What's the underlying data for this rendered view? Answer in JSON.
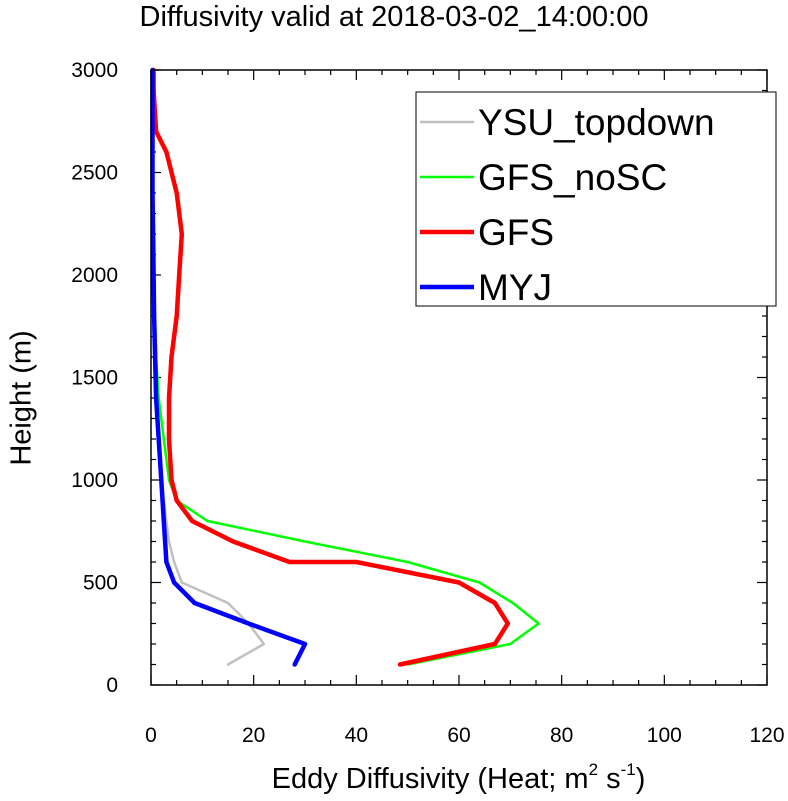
{
  "chart_data": {
    "type": "line",
    "title": "Diffusivity valid at 2018-03-02_14:00:00",
    "xlabel": {
      "main": "Eddy Diffusivity (Heat; m",
      "sup1": "2",
      "mid": " s",
      "sup2": "-1",
      "end": ")"
    },
    "ylabel": "Height (m)",
    "xlim": [
      0,
      120
    ],
    "ylim": [
      0,
      3000
    ],
    "xticks": [
      0,
      20,
      40,
      60,
      80,
      100,
      120
    ],
    "yticks": [
      0,
      500,
      1000,
      1500,
      2000,
      2500,
      3000
    ],
    "grid": false,
    "legend_position": "top-right",
    "series": [
      {
        "name": "YSU_topdown",
        "color": "#c0c0c0",
        "width": 2.5,
        "x": [
          15.0,
          22.0,
          19.0,
          15.0,
          6.0,
          4.5,
          3.5,
          3.0,
          2.5,
          2.0,
          1.5,
          1.0,
          0.8,
          0.6,
          0.5,
          0.4,
          0.4,
          0.4,
          0.4,
          0.4,
          0.4
        ],
        "y": [
          100,
          200,
          300,
          400,
          500,
          600,
          700,
          800,
          900,
          1000,
          1200,
          1400,
          1600,
          1800,
          2000,
          2200,
          2400,
          2600,
          2700,
          2900,
          3000
        ]
      },
      {
        "name": "GFS_noSC",
        "color": "#00ff00",
        "width": 2.5,
        "x": [
          50.0,
          70.0,
          75.5,
          70.5,
          64.0,
          50.0,
          30.0,
          11.0,
          5.0,
          3.5,
          2.5,
          1.5,
          1.0,
          0.8,
          0.6,
          0.5,
          0.4,
          0.3,
          0.3,
          0.3,
          0.3
        ],
        "y": [
          100,
          200,
          300,
          400,
          500,
          600,
          700,
          800,
          900,
          1000,
          1200,
          1400,
          1600,
          1800,
          2000,
          2200,
          2400,
          2600,
          2700,
          2900,
          3000
        ]
      },
      {
        "name": "GFS",
        "color": "#ff0000",
        "width": 4.5,
        "x": [
          48.5,
          67.0,
          69.5,
          67.0,
          60.0,
          40.0,
          27.0,
          16.0,
          8.0,
          5.0,
          4.0,
          3.5,
          3.5,
          4.0,
          5.0,
          5.5,
          6.0,
          5.0,
          3.0,
          1.0,
          0.5,
          0.5
        ],
        "y": [
          100,
          200,
          300,
          400,
          500,
          600,
          600,
          700,
          800,
          900,
          1000,
          1200,
          1400,
          1600,
          1800,
          2000,
          2200,
          2400,
          2600,
          2700,
          2900,
          3000
        ]
      },
      {
        "name": "MYJ",
        "color": "#0000ff",
        "width": 4.5,
        "x": [
          28.0,
          30.0,
          19.0,
          8.5,
          4.5,
          3.0,
          2.5,
          2.0,
          1.5,
          1.0,
          0.8,
          0.6,
          0.5,
          0.4,
          0.3,
          0.3,
          0.3,
          0.3,
          0.3
        ],
        "y": [
          100,
          200,
          300,
          400,
          500,
          600,
          800,
          1000,
          1200,
          1400,
          1600,
          1800,
          2000,
          2200,
          2400,
          2600,
          2800,
          2900,
          3000
        ]
      }
    ]
  }
}
